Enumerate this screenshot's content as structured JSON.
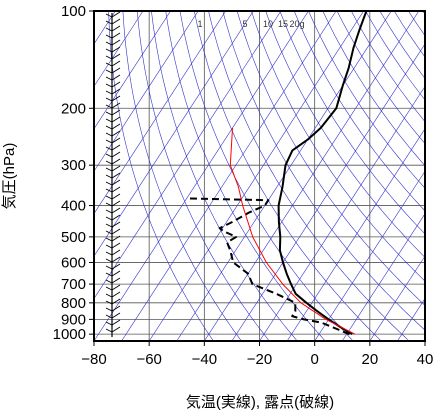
{
  "chart_data": {
    "type": "line",
    "subtype": "skew-t log-p emagram",
    "title": "",
    "xlabel": "気温(実線), 露点(破線)",
    "ylabel": "気圧(hPa)",
    "xlim": [
      -80,
      40
    ],
    "ylim": [
      1050,
      100
    ],
    "y_scale": "log",
    "x_ticks": [
      -80,
      -60,
      -40,
      -20,
      0,
      20,
      40
    ],
    "x_tick_labels": [
      "−80",
      "−60",
      "−40",
      "−20",
      "0",
      "20",
      "40"
    ],
    "y_ticks": [
      100,
      200,
      300,
      400,
      500,
      600,
      700,
      800,
      900,
      1000
    ],
    "y_tick_labels": [
      "100",
      "200",
      "300",
      "400",
      "500",
      "600",
      "700",
      "800",
      "900",
      "1000"
    ],
    "mixing_ratio_labels": [
      "1",
      "5",
      "10",
      "15",
      "20g"
    ],
    "grid": true,
    "series": [
      {
        "role": "temperature",
        "style": "solid",
        "color": "#000000",
        "points": [
          {
            "p": 1000,
            "x": 12
          },
          {
            "p": 950,
            "x": 6
          },
          {
            "p": 900,
            "x": 0
          },
          {
            "p": 850,
            "x": -6
          },
          {
            "p": 800,
            "x": -12
          },
          {
            "p": 750,
            "x": -18
          },
          {
            "p": 700,
            "x": -22
          },
          {
            "p": 650,
            "x": -26
          },
          {
            "p": 600,
            "x": -30
          },
          {
            "p": 550,
            "x": -34
          },
          {
            "p": 500,
            "x": -37
          },
          {
            "p": 450,
            "x": -41
          },
          {
            "p": 400,
            "x": -45
          },
          {
            "p": 350,
            "x": -48
          },
          {
            "p": 300,
            "x": -52
          },
          {
            "p": 270,
            "x": -53
          },
          {
            "p": 250,
            "x": -50
          },
          {
            "p": 230,
            "x": -48
          },
          {
            "p": 200,
            "x": -47
          },
          {
            "p": 170,
            "x": -50
          },
          {
            "p": 150,
            "x": -52
          },
          {
            "p": 130,
            "x": -55
          },
          {
            "p": 115,
            "x": -57
          },
          {
            "p": 100,
            "x": -59
          }
        ]
      },
      {
        "role": "dewpoint",
        "style": "dashed",
        "color": "#000000",
        "points": [
          {
            "p": 1000,
            "x": 11
          },
          {
            "p": 950,
            "x": 3
          },
          {
            "p": 920,
            "x": -2
          },
          {
            "p": 900,
            "x": -9
          },
          {
            "p": 880,
            "x": -14
          },
          {
            "p": 850,
            "x": -14
          },
          {
            "p": 800,
            "x": -16
          },
          {
            "p": 750,
            "x": -25
          },
          {
            "p": 700,
            "x": -36
          },
          {
            "p": 650,
            "x": -40
          },
          {
            "p": 600,
            "x": -48
          },
          {
            "p": 550,
            "x": -52
          },
          {
            "p": 520,
            "x": -55
          },
          {
            "p": 500,
            "x": -53
          },
          {
            "p": 480,
            "x": -59
          },
          {
            "p": 470,
            "x": -61
          },
          {
            "p": 450,
            "x": -58
          },
          {
            "p": 420,
            "x": -54
          },
          {
            "p": 400,
            "x": -50
          },
          {
            "p": 385,
            "x": -50
          },
          {
            "p": 380,
            "x": -80
          }
        ]
      },
      {
        "role": "parcel",
        "style": "solid",
        "color": "#ff0000",
        "points": [
          {
            "p": 1000,
            "x": 13
          },
          {
            "p": 900,
            "x": -1
          },
          {
            "p": 800,
            "x": -14
          },
          {
            "p": 700,
            "x": -25
          },
          {
            "p": 600,
            "x": -36
          },
          {
            "p": 500,
            "x": -47
          },
          {
            "p": 400,
            "x": -58
          },
          {
            "p": 350,
            "x": -64
          },
          {
            "p": 300,
            "x": -72
          },
          {
            "p": 230,
            "x": -80
          }
        ]
      }
    ],
    "colors": {
      "grid": "#555555",
      "reference_lines": "#3333cc",
      "parcel": "#ff0000",
      "profile": "#000000"
    }
  }
}
